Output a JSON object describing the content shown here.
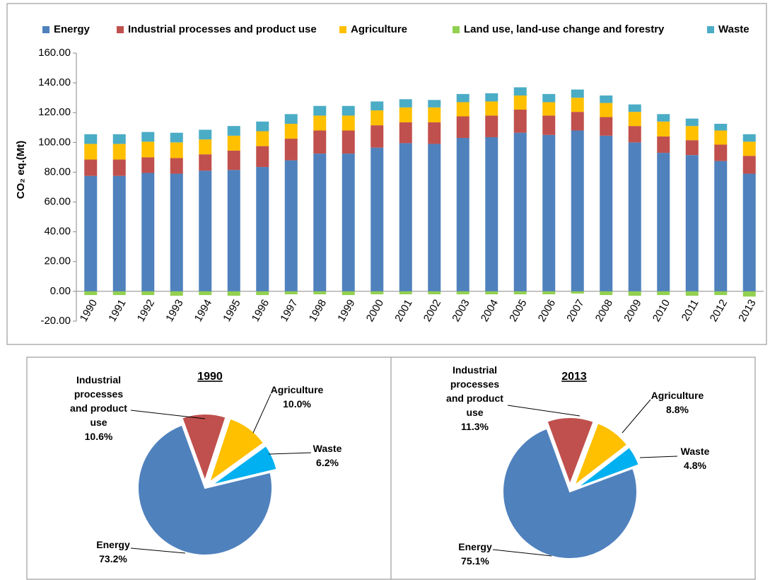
{
  "chart_data": [
    {
      "type": "bar",
      "stacked": true,
      "y_label": "CO₂ eq.(Mt)",
      "categories": [
        "1990",
        "1991",
        "1992",
        "1993",
        "1994",
        "1995",
        "1996",
        "1997",
        "1998",
        "1999",
        "2000",
        "2001",
        "2002",
        "2003",
        "2004",
        "2005",
        "2006",
        "2007",
        "2008",
        "2009",
        "2010",
        "2011",
        "2012",
        "2013"
      ],
      "ylim": [
        -20,
        160
      ],
      "yticks": [
        {
          "value": -20,
          "label": "-20.00"
        },
        {
          "value": 0,
          "label": "0.00"
        },
        {
          "value": 20,
          "label": "20.00"
        },
        {
          "value": 40,
          "label": "40.00"
        },
        {
          "value": 60,
          "label": "60.00"
        },
        {
          "value": 80,
          "label": "80.00"
        },
        {
          "value": 100,
          "label": "100.00"
        },
        {
          "value": 120,
          "label": "120.00"
        },
        {
          "value": 140,
          "label": "140.00"
        },
        {
          "value": 160,
          "label": "160.00"
        }
      ],
      "legend": "top",
      "series": [
        {
          "name": "Energy",
          "color": "#4f81bd",
          "values": [
            77.5,
            77.5,
            79.5,
            79,
            81,
            81.5,
            83.5,
            88,
            92.5,
            92.5,
            96.5,
            99.5,
            99,
            103,
            103.5,
            106.5,
            105,
            108,
            104.5,
            100,
            93,
            91.5,
            87.5,
            79
          ]
        },
        {
          "name": "Industrial processes and product use",
          "color": "#c0504d",
          "values": [
            11,
            11,
            10.5,
            10.5,
            11,
            13,
            14,
            14.5,
            15.5,
            15.5,
            15,
            14,
            14.5,
            14.5,
            14.5,
            15.5,
            13,
            12.5,
            12.5,
            11,
            11,
            10,
            11,
            12
          ]
        },
        {
          "name": "Agriculture",
          "color": "#ffc000",
          "values": [
            10.5,
            10.5,
            10.5,
            10.5,
            10,
            10,
            10,
            10,
            10,
            10,
            10,
            10,
            10,
            9.5,
            9.5,
            9.5,
            9,
            9.5,
            9.5,
            9.5,
            10,
            9.5,
            9.5,
            9.5
          ]
        },
        {
          "name": "Land use, land-use change and forestry",
          "color": "#92d050",
          "values": [
            -2.5,
            -2.5,
            -2.5,
            -3,
            -2.5,
            -3,
            -2.5,
            -2,
            -2,
            -2.5,
            -2,
            -2,
            -2,
            -2,
            -2,
            -2,
            -2,
            -1.5,
            -2.5,
            -3,
            -2.5,
            -3,
            -2.5,
            -3.5
          ]
        },
        {
          "name": "Waste",
          "color": "#4bacc6",
          "values": [
            6.5,
            6.5,
            6.5,
            6.5,
            6.5,
            6.5,
            6.5,
            6.5,
            6.5,
            6.5,
            6,
            5.5,
            5,
            5.5,
            5.5,
            5.5,
            5.5,
            5.5,
            5,
            5,
            5,
            5,
            4.5,
            5
          ]
        }
      ]
    },
    {
      "type": "pie",
      "title": "1990",
      "categories": [
        "Energy",
        "Industrial processes and product use",
        "Agriculture",
        "Waste"
      ],
      "values": [
        73.2,
        10.6,
        10.0,
        6.2
      ],
      "value_labels": [
        "73.2%",
        "10.6%",
        "10.0%",
        "6.2%"
      ],
      "colors": [
        "#4f81bd",
        "#c0504d",
        "#ffc000",
        "#00b0f0"
      ]
    },
    {
      "type": "pie",
      "title": "2013",
      "categories": [
        "Energy",
        "Industrial processes and product use",
        "Agriculture",
        "Waste"
      ],
      "values": [
        75.1,
        11.3,
        8.8,
        4.8
      ],
      "value_labels": [
        "75.1%",
        "11.3%",
        "8.8%",
        "4.8%"
      ],
      "colors": [
        "#4f81bd",
        "#c0504d",
        "#ffc000",
        "#00b0f0"
      ]
    }
  ]
}
